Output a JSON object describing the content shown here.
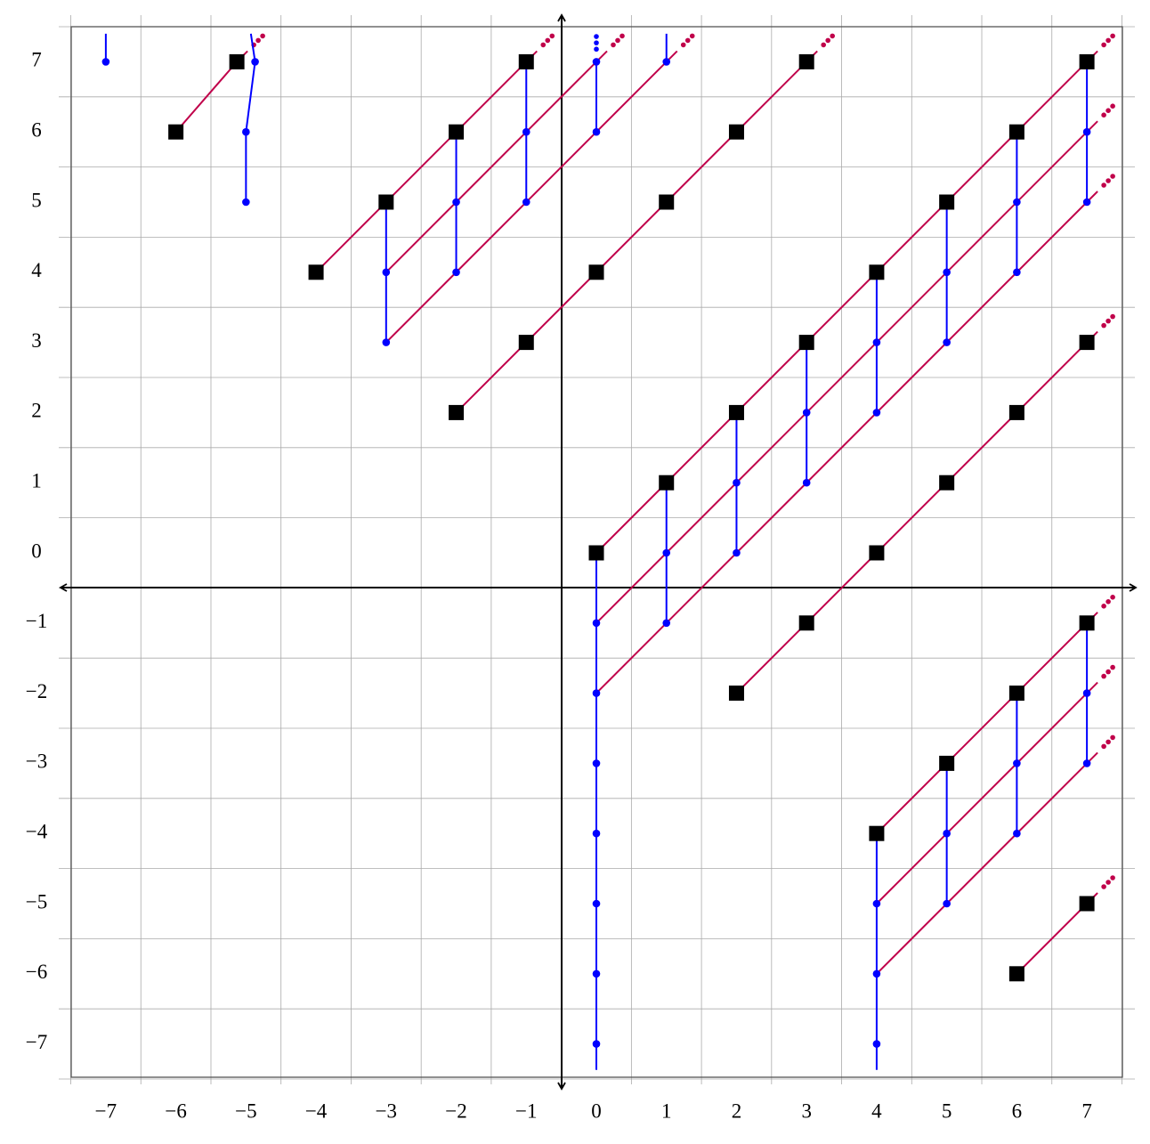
{
  "axes": {
    "xticks": [
      {
        "value": -7,
        "label": "−7"
      },
      {
        "value": -6,
        "label": "−6"
      },
      {
        "value": -5,
        "label": "−5"
      },
      {
        "value": -4,
        "label": "−4"
      },
      {
        "value": -3,
        "label": "−3"
      },
      {
        "value": -2,
        "label": "−2"
      },
      {
        "value": -1,
        "label": "−1"
      },
      0,
      1,
      2,
      3,
      4,
      5,
      6,
      7
    ],
    "yticks": [
      {
        "value": -7,
        "label": "−7"
      },
      {
        "value": -6,
        "label": "−6"
      },
      {
        "value": -5,
        "label": "−5"
      },
      {
        "value": -4,
        "label": "−4"
      },
      {
        "value": -3,
        "label": "−3"
      },
      {
        "value": -2,
        "label": "−2"
      },
      {
        "value": -1,
        "label": "−1"
      },
      0,
      1,
      2,
      3,
      4,
      5,
      6,
      7
    ]
  },
  "colors": {
    "square": "#000000",
    "tower": "#0000ff",
    "line": "#c0004a",
    "grid": "#aaaaaa"
  },
  "squares": [
    [
      -6,
      6
    ],
    [
      -5.13,
      7
    ],
    [
      -4,
      4
    ],
    [
      -3,
      5
    ],
    [
      -2,
      6
    ],
    [
      -1,
      7
    ],
    [
      -2,
      2
    ],
    [
      -1,
      3
    ],
    [
      0,
      4
    ],
    [
      1,
      5
    ],
    [
      2,
      6
    ],
    [
      3,
      7
    ],
    [
      0,
      0
    ],
    [
      1,
      1
    ],
    [
      2,
      2
    ],
    [
      3,
      3
    ],
    [
      4,
      4
    ],
    [
      5,
      5
    ],
    [
      6,
      6
    ],
    [
      7,
      7
    ],
    [
      4,
      0
    ],
    [
      5,
      1
    ],
    [
      6,
      2
    ],
    [
      7,
      3
    ],
    [
      2,
      -2
    ],
    [
      3,
      -1
    ],
    [
      4,
      -4
    ],
    [
      5,
      -3
    ],
    [
      6,
      -2
    ],
    [
      7,
      -1
    ],
    [
      6,
      -6
    ],
    [
      7,
      -5
    ]
  ],
  "dots": [
    [
      -7,
      7
    ],
    [
      -5,
      5
    ],
    [
      -5,
      6
    ],
    [
      -4.87,
      7
    ],
    [
      -3,
      4
    ],
    [
      -3,
      3
    ],
    [
      -2,
      5
    ],
    [
      -2,
      4
    ],
    [
      -1,
      6
    ],
    [
      -1,
      5
    ],
    [
      0,
      7
    ],
    [
      0,
      6
    ],
    [
      1,
      7
    ],
    [
      0,
      -1
    ],
    [
      0,
      -2
    ],
    [
      0,
      -3
    ],
    [
      0,
      -4
    ],
    [
      0,
      -5
    ],
    [
      0,
      -6
    ],
    [
      0,
      -7
    ],
    [
      1,
      0
    ],
    [
      1,
      -1
    ],
    [
      2,
      1
    ],
    [
      2,
      0
    ],
    [
      3,
      2
    ],
    [
      3,
      1
    ],
    [
      4,
      3
    ],
    [
      4,
      2
    ],
    [
      5,
      4
    ],
    [
      5,
      3
    ],
    [
      6,
      5
    ],
    [
      6,
      4
    ],
    [
      7,
      6
    ],
    [
      7,
      5
    ],
    [
      4,
      -5
    ],
    [
      4,
      -6
    ],
    [
      4,
      -7
    ],
    [
      5,
      -4
    ],
    [
      5,
      -5
    ],
    [
      6,
      -3
    ],
    [
      6,
      -4
    ],
    [
      7,
      -2
    ],
    [
      7,
      -3
    ]
  ],
  "small_dots": [
    [
      0,
      7.18
    ],
    [
      0,
      7.27
    ],
    [
      0,
      7.36
    ]
  ],
  "towers": [
    [
      [
        -7,
        7
      ],
      [
        -7,
        7.4
      ]
    ],
    [
      [
        -5,
        5
      ],
      [
        -5,
        6
      ],
      [
        -4.87,
        7
      ],
      [
        -4.93,
        7.4
      ]
    ],
    [
      [
        -3,
        5
      ],
      [
        -3,
        4
      ],
      [
        -3,
        3
      ]
    ],
    [
      [
        -2,
        6
      ],
      [
        -2,
        5
      ],
      [
        -2,
        4
      ]
    ],
    [
      [
        -1,
        7
      ],
      [
        -1,
        6
      ],
      [
        -1,
        5
      ]
    ],
    [
      [
        0,
        7
      ],
      [
        0,
        6
      ]
    ],
    [
      [
        1,
        7.4
      ],
      [
        1,
        7
      ]
    ],
    [
      [
        0,
        0
      ],
      [
        0,
        -1
      ],
      [
        0,
        -2
      ],
      [
        0,
        -3
      ],
      [
        0,
        -4
      ],
      [
        0,
        -5
      ],
      [
        0,
        -6
      ],
      [
        0,
        -7
      ],
      [
        0,
        -7.37
      ]
    ],
    [
      [
        1,
        1
      ],
      [
        1,
        0
      ],
      [
        1,
        -1
      ]
    ],
    [
      [
        2,
        2
      ],
      [
        2,
        1
      ],
      [
        2,
        0
      ]
    ],
    [
      [
        3,
        3
      ],
      [
        3,
        2
      ],
      [
        3,
        1
      ]
    ],
    [
      [
        4,
        4
      ],
      [
        4,
        3
      ],
      [
        4,
        2
      ]
    ],
    [
      [
        5,
        5
      ],
      [
        5,
        4
      ],
      [
        5,
        3
      ]
    ],
    [
      [
        6,
        6
      ],
      [
        6,
        5
      ],
      [
        6,
        4
      ]
    ],
    [
      [
        7,
        7
      ],
      [
        7,
        6
      ],
      [
        7,
        5
      ]
    ],
    [
      [
        4,
        -4
      ],
      [
        4,
        -5
      ],
      [
        4,
        -6
      ],
      [
        4,
        -7
      ],
      [
        4,
        -7.37
      ]
    ],
    [
      [
        5,
        -3
      ],
      [
        5,
        -4
      ],
      [
        5,
        -5
      ]
    ],
    [
      [
        6,
        -2
      ],
      [
        6,
        -3
      ],
      [
        6,
        -4
      ]
    ],
    [
      [
        7,
        -1
      ],
      [
        7,
        -2
      ],
      [
        7,
        -3
      ]
    ]
  ],
  "lines": [
    {
      "from": [
        -6,
        6
      ],
      "to": [
        -5.13,
        7
      ]
    },
    {
      "from": [
        -4,
        4
      ],
      "to": [
        -1,
        7
      ]
    },
    {
      "from": [
        -3,
        4
      ],
      "to": [
        0,
        7
      ]
    },
    {
      "from": [
        -3,
        3
      ],
      "to": [
        1,
        7
      ]
    },
    {
      "from": [
        -2,
        2
      ],
      "to": [
        3,
        7
      ]
    },
    {
      "from": [
        0,
        0
      ],
      "to": [
        7,
        7
      ]
    },
    {
      "from": [
        0,
        -1
      ],
      "to": [
        7,
        6
      ]
    },
    {
      "from": [
        0,
        -2
      ],
      "to": [
        7,
        5
      ]
    },
    {
      "from": [
        2,
        -2
      ],
      "to": [
        7,
        3
      ]
    },
    {
      "from": [
        4,
        -4
      ],
      "to": [
        7,
        -1
      ]
    },
    {
      "from": [
        4,
        -5
      ],
      "to": [
        7,
        -2
      ]
    },
    {
      "from": [
        4,
        -6
      ],
      "to": [
        7,
        -3
      ]
    },
    {
      "from": [
        6,
        -6
      ],
      "to": [
        7,
        -5
      ]
    }
  ]
}
